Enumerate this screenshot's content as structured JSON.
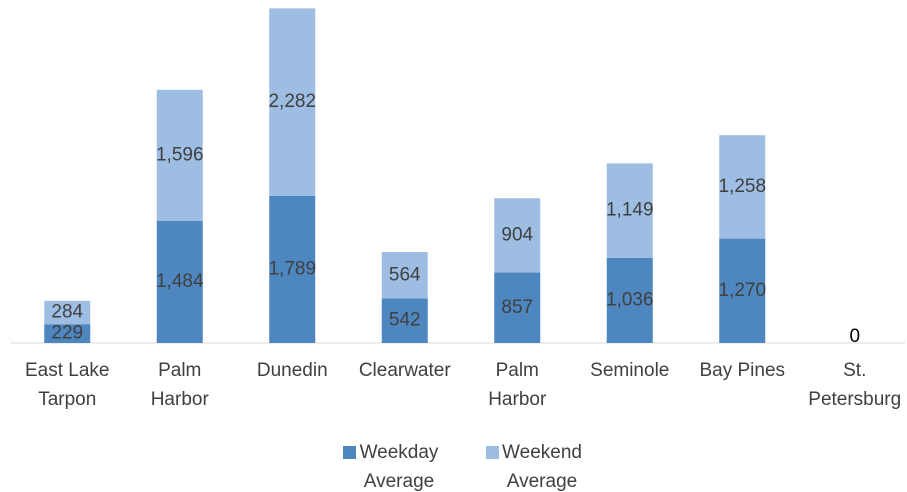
{
  "chart_data": {
    "type": "bar",
    "stacked": true,
    "categories": [
      "East Lake Tarpon",
      "Palm Harbor",
      "Dunedin",
      "Clearwater",
      "Palm Harbor",
      "Seminole",
      "Bay Pines",
      "St. Petersburg"
    ],
    "series": [
      {
        "name": "Weekday Average",
        "color": "#4e86bf",
        "values": [
          229,
          1484,
          1789,
          542,
          857,
          1036,
          1270,
          0
        ],
        "value_labels": [
          "229",
          "1,484",
          "1,789",
          "542",
          "857",
          "1,036",
          "1,270",
          "0"
        ]
      },
      {
        "name": "Weekend Average",
        "color": "#9dbde3",
        "values": [
          284,
          1596,
          2282,
          564,
          904,
          1149,
          1258,
          null
        ],
        "value_labels": [
          "284",
          "1,596",
          "2,282",
          "564",
          "904",
          "1,149",
          "1,258",
          null
        ]
      }
    ],
    "ylim": [
      0,
      4100
    ],
    "legend": "bottom"
  }
}
